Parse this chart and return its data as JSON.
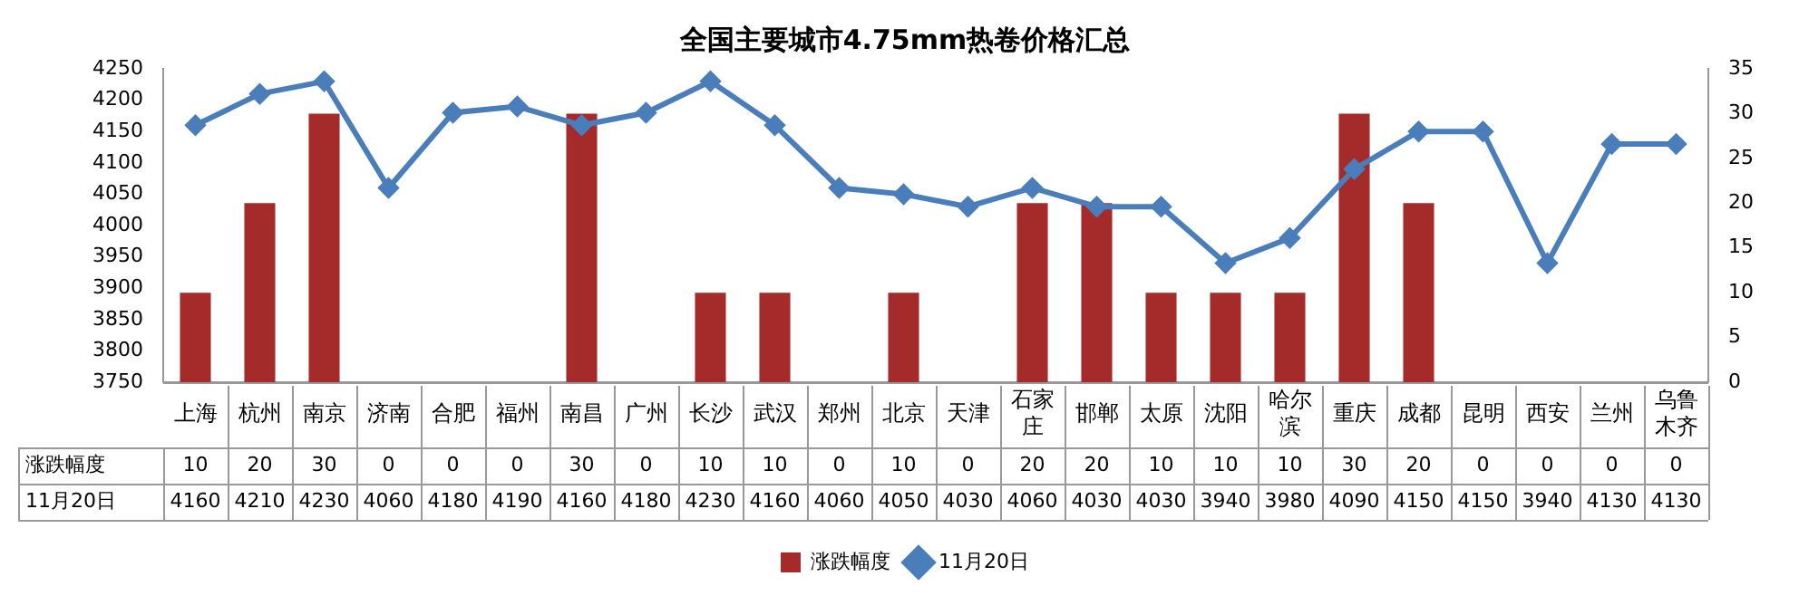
{
  "chart_data": {
    "type": "bar",
    "title": "全国主要城市4.75mm热卷价格汇总",
    "categories": [
      "上海",
      "杭州",
      "南京",
      "济南",
      "合肥",
      "福州",
      "南昌",
      "广州",
      "长沙",
      "武汉",
      "郑州",
      "北京",
      "天津",
      "石家庄",
      "邯郸",
      "太原",
      "沈阳",
      "哈尔滨",
      "重庆",
      "成都",
      "昆明",
      "西安",
      "兰州",
      "乌鲁木齐"
    ],
    "series": [
      {
        "name": "涨跌幅度",
        "axis": "y2",
        "color": "#a52a2a",
        "values": [
          10,
          20,
          30,
          0,
          0,
          0,
          30,
          0,
          10,
          10,
          0,
          10,
          0,
          20,
          20,
          10,
          10,
          10,
          30,
          20,
          0,
          0,
          0,
          0
        ]
      },
      {
        "name": "11月20日",
        "type": "line",
        "color": "#4a7ebb",
        "marker": "diamond",
        "values": [
          4160,
          4210,
          4230,
          4060,
          4180,
          4190,
          4160,
          4180,
          4230,
          4160,
          4060,
          4050,
          4030,
          4060,
          4030,
          4030,
          3940,
          3980,
          4090,
          4150,
          4150,
          3940,
          4130,
          4130
        ]
      }
    ],
    "ylim": [
      3750,
      4250
    ],
    "yticks": [
      3750,
      3800,
      3850,
      3900,
      3950,
      4000,
      4050,
      4100,
      4150,
      4200,
      4250
    ],
    "y2lim": [
      0,
      35
    ],
    "y2ticks": [
      0,
      5,
      10,
      15,
      20,
      25,
      30,
      35
    ],
    "data_labels": true,
    "grid": false,
    "legend": "bottom"
  }
}
